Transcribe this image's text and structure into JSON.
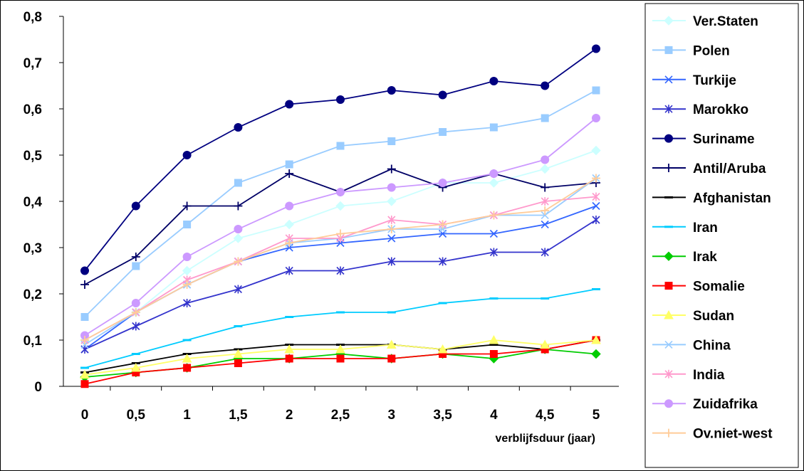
{
  "chart_data": {
    "type": "line",
    "x": [
      "0",
      "0,5",
      "1",
      "1,5",
      "2",
      "2,5",
      "3",
      "3,5",
      "4",
      "4,5",
      "5"
    ],
    "xlabel": "verblijfsduur (jaar)",
    "ylabel": "",
    "ylim": [
      0,
      0.8
    ],
    "yticks": [
      "0",
      "0,1",
      "0,2",
      "0,3",
      "0,4",
      "0,5",
      "0,6",
      "0,7",
      "0,8"
    ],
    "grid": false,
    "legend_position": "right",
    "series": [
      {
        "name": "Ver.Staten",
        "color": "#ccffff",
        "marker": "diamond",
        "values": [
          0.1,
          0.16,
          0.25,
          0.32,
          0.35,
          0.39,
          0.4,
          0.44,
          0.44,
          0.47,
          0.51
        ]
      },
      {
        "name": "Polen",
        "color": "#99ccff",
        "marker": "square",
        "values": [
          0.15,
          0.26,
          0.35,
          0.44,
          0.48,
          0.52,
          0.53,
          0.55,
          0.56,
          0.58,
          0.64
        ]
      },
      {
        "name": "Turkije",
        "color": "#3366ff",
        "marker": "x",
        "values": [
          0.08,
          0.16,
          0.22,
          0.27,
          0.3,
          0.31,
          0.32,
          0.33,
          0.33,
          0.35,
          0.39
        ]
      },
      {
        "name": "Marokko",
        "color": "#3333cc",
        "marker": "asterisk",
        "values": [
          0.08,
          0.13,
          0.18,
          0.21,
          0.25,
          0.25,
          0.27,
          0.27,
          0.29,
          0.29,
          0.36
        ]
      },
      {
        "name": "Suriname",
        "color": "#000080",
        "marker": "circle",
        "values": [
          0.25,
          0.39,
          0.5,
          0.56,
          0.61,
          0.62,
          0.64,
          0.63,
          0.66,
          0.65,
          0.73
        ]
      },
      {
        "name": "Antil/Aruba",
        "color": "#000066",
        "marker": "plus",
        "values": [
          0.22,
          0.28,
          0.39,
          0.39,
          0.46,
          0.42,
          0.47,
          0.43,
          0.46,
          0.43,
          0.44
        ]
      },
      {
        "name": "Afghanistan",
        "color": "#000000",
        "marker": "dash",
        "values": [
          0.03,
          0.05,
          0.07,
          0.08,
          0.09,
          0.09,
          0.09,
          0.08,
          0.09,
          0.08,
          0.1
        ]
      },
      {
        "name": "Iran",
        "color": "#00ccff",
        "marker": "dash",
        "values": [
          0.04,
          0.07,
          0.1,
          0.13,
          0.15,
          0.16,
          0.16,
          0.18,
          0.19,
          0.19,
          0.21
        ]
      },
      {
        "name": "Irak",
        "color": "#00cc00",
        "marker": "diamond",
        "values": [
          0.02,
          0.03,
          0.04,
          0.06,
          0.06,
          0.07,
          0.06,
          0.07,
          0.06,
          0.08,
          0.07
        ]
      },
      {
        "name": "Somalie",
        "color": "#ff0000",
        "marker": "square",
        "values": [
          0.005,
          0.03,
          0.04,
          0.05,
          0.06,
          0.06,
          0.06,
          0.07,
          0.07,
          0.08,
          0.1
        ]
      },
      {
        "name": "Sudan",
        "color": "#ffff66",
        "marker": "triangle",
        "values": [
          0.025,
          0.04,
          0.06,
          0.07,
          0.08,
          0.08,
          0.09,
          0.08,
          0.1,
          0.09,
          0.1
        ]
      },
      {
        "name": "China",
        "color": "#99ccff",
        "marker": "x",
        "values": [
          0.09,
          0.16,
          0.22,
          0.27,
          0.31,
          0.32,
          0.34,
          0.34,
          0.37,
          0.37,
          0.45
        ]
      },
      {
        "name": "India",
        "color": "#ff99cc",
        "marker": "asterisk",
        "values": [
          0.1,
          0.16,
          0.23,
          0.27,
          0.32,
          0.32,
          0.36,
          0.35,
          0.37,
          0.4,
          0.41
        ]
      },
      {
        "name": "Zuidafrika",
        "color": "#cc99ff",
        "marker": "circle",
        "values": [
          0.11,
          0.18,
          0.28,
          0.34,
          0.39,
          0.42,
          0.43,
          0.44,
          0.46,
          0.49,
          0.58
        ]
      },
      {
        "name": "Ov.niet-west",
        "color": "#ffcc99",
        "marker": "plus",
        "values": [
          0.1,
          0.16,
          0.22,
          0.27,
          0.31,
          0.33,
          0.34,
          0.35,
          0.37,
          0.38,
          0.45
        ]
      }
    ]
  }
}
